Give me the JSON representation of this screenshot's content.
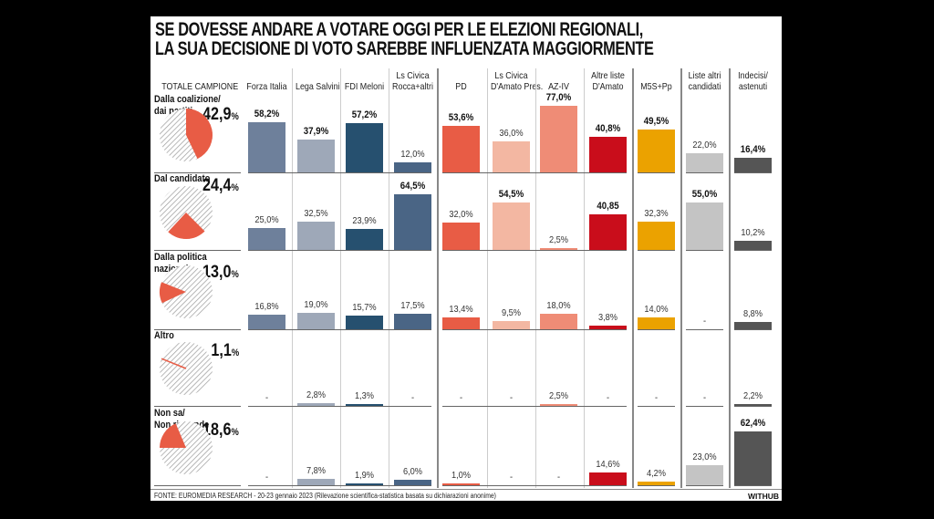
{
  "chart_data": {
    "type": "bar",
    "title": "SE DOVESSE ANDARE A VOTARE OGGI PER LE ELEZIONI REGIONALI, LA SUA DECISIONE DI VOTO SAREBBE INFLUENZATA MAGGIORMENTE",
    "title_lines": [
      "SE DOVESSE ANDARE A VOTARE OGGI PER LE ELEZIONI REGIONALI,",
      "LA SUA DECISIONE DI VOTO SAREBBE INFLUENZATA MAGGIORMENTE"
    ],
    "total_header": "TOTALE CAMPIONE",
    "columns": [
      {
        "label": "Forza Italia",
        "color": "#6e809b",
        "group": 0
      },
      {
        "label": "Lega Salvini",
        "color": "#9ea8b8",
        "group": 0
      },
      {
        "label": "FDI Meloni",
        "color": "#26506f",
        "group": 0
      },
      {
        "label": "Ls Civica\nRocca+altri",
        "color": "#4a6585",
        "group": 0
      },
      {
        "label": "PD",
        "color": "#e85c45",
        "group": 1
      },
      {
        "label": "Ls Civica\nD'Amato Pres.",
        "color": "#f3b7a2",
        "group": 1
      },
      {
        "label": "AZ-IV",
        "color": "#ef8c76",
        "group": 1
      },
      {
        "label": "Altre liste\nD'Amato",
        "color": "#c90d1b",
        "group": 1
      },
      {
        "label": "M5S+Pp",
        "color": "#eba200",
        "group": 2
      },
      {
        "label": "Liste altri\ncandidati",
        "color": "#c4c4c4",
        "group": 3
      },
      {
        "label": "Indecisi/\nastenuti",
        "color": "#555555",
        "group": 4
      }
    ],
    "rows": [
      {
        "label": "Dalla coalizione/\ndai partiti",
        "total": 42.9,
        "total_label": "42,9",
        "values": [
          58.2,
          37.9,
          57.2,
          12.0,
          53.6,
          36.0,
          77.0,
          40.8,
          49.5,
          22.0,
          16.4
        ],
        "labels": [
          "58,2%",
          "37,9%",
          "57,2%",
          "12,0%",
          "53,6%",
          "36,0%",
          "77,0%",
          "40,8%",
          "49,5%",
          "22,0%",
          "16,4%"
        ]
      },
      {
        "label": "Dal candidato",
        "total": 24.4,
        "total_label": "24,4",
        "values": [
          25.0,
          32.5,
          23.9,
          64.5,
          32.0,
          54.5,
          2.5,
          40.85,
          32.3,
          55.0,
          10.2
        ],
        "labels": [
          "25,0%",
          "32,5%",
          "23,9%",
          "64,5%",
          "32,0%",
          "54,5%",
          "2,5%",
          "40,85",
          "32,3%",
          "55,0%",
          "10,2%"
        ]
      },
      {
        "label": "Dalla politica\nnazionale",
        "total": 13.0,
        "total_label": "13,0",
        "values": [
          16.8,
          19.0,
          15.7,
          17.5,
          13.4,
          9.5,
          18.0,
          3.8,
          14.0,
          0,
          8.8
        ],
        "labels": [
          "16,8%",
          "19,0%",
          "15,7%",
          "17,5%",
          "13,4%",
          "9,5%",
          "18,0%",
          "3,8%",
          "14,0%",
          "-",
          "8,8%"
        ]
      },
      {
        "label": "Altro",
        "total": 1.1,
        "total_label": "1,1",
        "values": [
          0,
          2.8,
          1.3,
          0,
          0,
          0,
          2.5,
          0,
          0,
          0,
          2.2
        ],
        "labels": [
          "-",
          "2,8%",
          "1,3%",
          "-",
          "-",
          "-",
          "2,5%",
          "-",
          "-",
          "-",
          "2,2%"
        ]
      },
      {
        "label": "Non sa/\nNon risponde",
        "total": 18.6,
        "total_label": "18,6",
        "values": [
          0,
          7.8,
          1.9,
          6.0,
          1.0,
          0,
          0,
          14.6,
          4.2,
          23.0,
          62.4
        ],
        "labels": [
          "-",
          "7,8%",
          "1,9%",
          "6,0%",
          "1,0%",
          "-",
          "-",
          "14,6%",
          "4,2%",
          "23,0%",
          "62,4%"
        ]
      }
    ],
    "bold_labels": [
      [
        true,
        true,
        true,
        false,
        true,
        false,
        true,
        true,
        true,
        false,
        true
      ],
      [
        false,
        false,
        false,
        true,
        false,
        true,
        false,
        true,
        false,
        true,
        false
      ],
      [
        false,
        false,
        false,
        false,
        false,
        false,
        false,
        false,
        false,
        false,
        false
      ],
      [
        false,
        false,
        false,
        false,
        false,
        false,
        false,
        false,
        false,
        false,
        false
      ],
      [
        false,
        false,
        false,
        false,
        false,
        false,
        false,
        false,
        false,
        false,
        true
      ]
    ],
    "pie_color": "#e85c45",
    "ylim": [
      0,
      100
    ],
    "unit": "%"
  },
  "footer": {
    "source": "FONTE: EUROMEDIA RESEARCH - 20-23 gennaio 2023 (Rilevazione scientifica-statistica basata su dichiarazioni anonime)",
    "brand": "WITHUB"
  }
}
